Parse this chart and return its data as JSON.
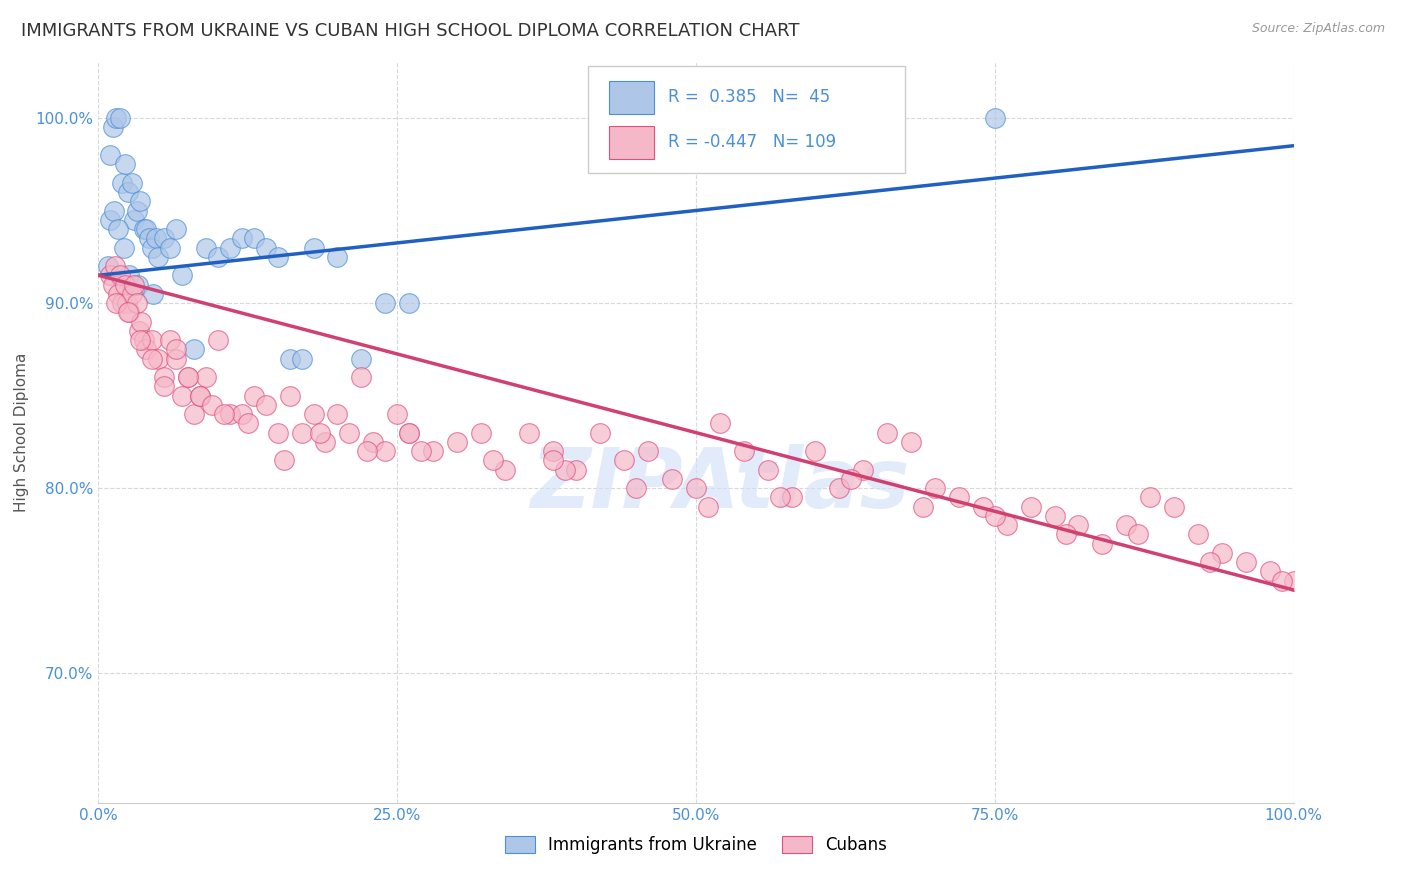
{
  "title": "IMMIGRANTS FROM UKRAINE VS CUBAN HIGH SCHOOL DIPLOMA CORRELATION CHART",
  "source": "Source: ZipAtlas.com",
  "ylabel": "High School Diploma",
  "legend_ukraine": "Immigrants from Ukraine",
  "legend_cubans": "Cubans",
  "R_ukraine": 0.385,
  "N_ukraine": 45,
  "R_cubans": -0.447,
  "N_cubans": 109,
  "ukraine_color": "#aec6e8",
  "ukraine_line_color": "#4a90d9",
  "ukraine_trend_color": "#2060c0",
  "cubans_color": "#f5b8c8",
  "cubans_line_color": "#e05080",
  "cubans_trend_color": "#d04070",
  "watermark_color": "#d0dff5",
  "background_color": "#ffffff",
  "grid_color": "#d8d8d8",
  "ukraine_x": [
    1.0,
    1.2,
    1.5,
    1.8,
    2.0,
    2.2,
    2.5,
    2.8,
    3.0,
    3.2,
    3.5,
    3.8,
    4.0,
    4.2,
    4.5,
    4.8,
    5.0,
    5.5,
    6.0,
    6.5,
    7.0,
    8.0,
    9.0,
    10.0,
    11.0,
    12.0,
    13.0,
    14.0,
    15.0,
    16.0,
    17.0,
    18.0,
    20.0,
    22.0,
    24.0,
    26.0,
    1.0,
    1.3,
    1.6,
    2.1,
    2.6,
    3.3,
    4.6,
    75.0,
    0.8
  ],
  "ukraine_y": [
    98.0,
    99.5,
    100.0,
    100.0,
    96.5,
    97.5,
    96.0,
    96.5,
    94.5,
    95.0,
    95.5,
    94.0,
    94.0,
    93.5,
    93.0,
    93.5,
    92.5,
    93.5,
    93.0,
    94.0,
    91.5,
    87.5,
    93.0,
    92.5,
    93.0,
    93.5,
    93.5,
    93.0,
    92.5,
    87.0,
    87.0,
    93.0,
    92.5,
    87.0,
    90.0,
    90.0,
    94.5,
    95.0,
    94.0,
    93.0,
    91.5,
    91.0,
    90.5,
    100.0,
    92.0
  ],
  "cubans_x": [
    1.0,
    1.2,
    1.4,
    1.6,
    1.8,
    2.0,
    2.2,
    2.4,
    2.6,
    2.8,
    3.0,
    3.2,
    3.4,
    3.6,
    3.8,
    4.0,
    4.5,
    5.0,
    5.5,
    6.0,
    6.5,
    7.0,
    7.5,
    8.0,
    8.5,
    9.0,
    10.0,
    11.0,
    12.0,
    13.0,
    14.0,
    15.0,
    16.0,
    17.0,
    18.0,
    19.0,
    20.0,
    21.0,
    22.0,
    23.0,
    24.0,
    25.0,
    26.0,
    28.0,
    30.0,
    32.0,
    34.0,
    36.0,
    38.0,
    40.0,
    42.0,
    44.0,
    46.0,
    48.0,
    50.0,
    52.0,
    54.0,
    56.0,
    58.0,
    60.0,
    62.0,
    64.0,
    66.0,
    68.0,
    70.0,
    72.0,
    74.0,
    76.0,
    78.0,
    80.0,
    82.0,
    84.0,
    86.0,
    88.0,
    90.0,
    92.0,
    94.0,
    96.0,
    98.0,
    100.0,
    1.5,
    2.5,
    3.5,
    4.5,
    5.5,
    6.5,
    7.5,
    8.5,
    9.5,
    10.5,
    12.5,
    15.5,
    18.5,
    22.5,
    27.0,
    33.0,
    39.0,
    45.0,
    51.0,
    57.0,
    63.0,
    69.0,
    75.0,
    81.0,
    87.0,
    93.0,
    99.0,
    26.0,
    38.0
  ],
  "cubans_y": [
    91.5,
    91.0,
    92.0,
    90.5,
    91.5,
    90.0,
    91.0,
    90.0,
    89.5,
    90.5,
    91.0,
    90.0,
    88.5,
    89.0,
    88.0,
    87.5,
    88.0,
    87.0,
    86.0,
    88.0,
    87.0,
    85.0,
    86.0,
    84.0,
    85.0,
    86.0,
    88.0,
    84.0,
    84.0,
    85.0,
    84.5,
    83.0,
    85.0,
    83.0,
    84.0,
    82.5,
    84.0,
    83.0,
    86.0,
    82.5,
    82.0,
    84.0,
    83.0,
    82.0,
    82.5,
    83.0,
    81.0,
    83.0,
    82.0,
    81.0,
    83.0,
    81.5,
    82.0,
    80.5,
    80.0,
    83.5,
    82.0,
    81.0,
    79.5,
    82.0,
    80.0,
    81.0,
    83.0,
    82.5,
    80.0,
    79.5,
    79.0,
    78.0,
    79.0,
    78.5,
    78.0,
    77.0,
    78.0,
    79.5,
    79.0,
    77.5,
    76.5,
    76.0,
    75.5,
    75.0,
    90.0,
    89.5,
    88.0,
    87.0,
    85.5,
    87.5,
    86.0,
    85.0,
    84.5,
    84.0,
    83.5,
    81.5,
    83.0,
    82.0,
    82.0,
    81.5,
    81.0,
    80.0,
    79.0,
    79.5,
    80.5,
    79.0,
    78.5,
    77.5,
    77.5,
    76.0,
    75.0,
    83.0,
    81.5
  ],
  "xlim": [
    0,
    100
  ],
  "ylim": [
    63,
    103
  ],
  "xtick_positions": [
    0,
    25,
    50,
    75,
    100
  ],
  "xtick_labels": [
    "0.0%",
    "25.0%",
    "50.0%",
    "75.0%",
    "100.0%"
  ],
  "ytick_positions": [
    70,
    80,
    90,
    100
  ],
  "ytick_labels": [
    "70.0%",
    "80.0%",
    "90.0%",
    "100.0%"
  ],
  "title_fontsize": 13,
  "axis_label_fontsize": 11,
  "tick_fontsize": 11,
  "legend_fontsize": 12,
  "ukraine_trend_x0": 0,
  "ukraine_trend_x1": 100,
  "ukraine_trend_y0": 91.5,
  "ukraine_trend_y1": 98.5,
  "cubans_trend_x0": 0,
  "cubans_trend_x1": 100,
  "cubans_trend_y0": 91.5,
  "cubans_trend_y1": 74.5
}
